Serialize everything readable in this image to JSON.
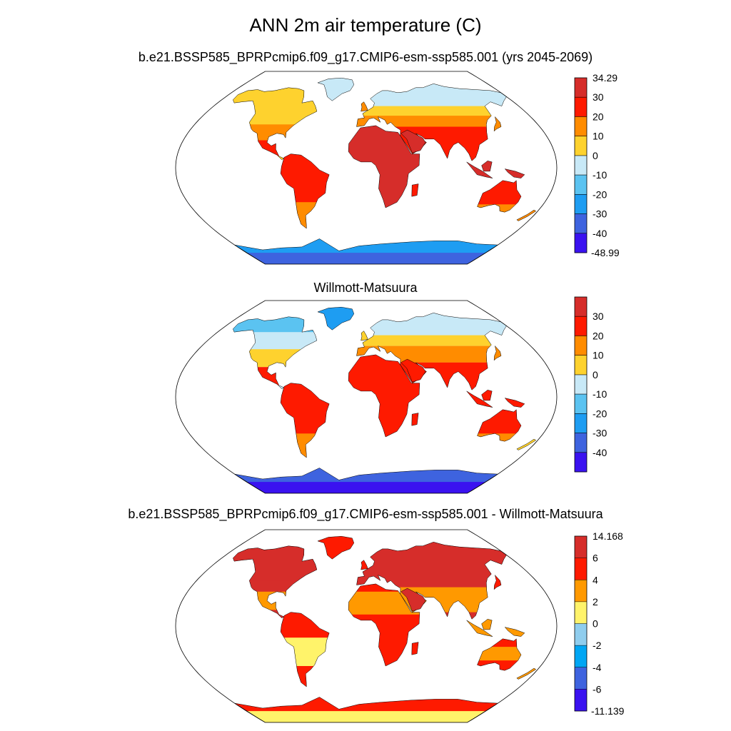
{
  "header": {
    "title": "ANN 2m air temperature (C)"
  },
  "chart_data": [
    {
      "type": "heatmap",
      "projection": "robinson",
      "title": "b.e21.BSSP585_BPRPcmip6.f09_g17.CMIP6-esm-ssp585.001 (yrs 2045-2069)",
      "colorbar": {
        "colors": [
          "#3a12f0",
          "#3e63df",
          "#1e9df2",
          "#5bc3f1",
          "#c8e9f7",
          "#fed22e",
          "#ff8c00",
          "#fe1a00",
          "#d62d2a"
        ],
        "labels": [
          "-48.99",
          "-40",
          "-30",
          "-20",
          "-10",
          "0",
          "10",
          "20",
          "30",
          "34.29"
        ],
        "label_mode": "edges"
      }
    },
    {
      "type": "heatmap",
      "projection": "robinson",
      "title": "Willmott-Matsuura",
      "colorbar": {
        "colors": [
          "#3a12f0",
          "#3e63df",
          "#1e9df2",
          "#5bc3f1",
          "#c8e9f7",
          "#fed22e",
          "#ff8c00",
          "#fe1a00",
          "#d62d2a"
        ],
        "labels": [
          "-40",
          "-30",
          "-20",
          "-10",
          "0",
          "10",
          "20",
          "30"
        ],
        "label_mode": "interior"
      }
    },
    {
      "type": "heatmap",
      "projection": "robinson",
      "title": "b.e21.BSSP585_BPRPcmip6.f09_g17.CMIP6-esm-ssp585.001 - Willmott-Matsuura",
      "colorbar": {
        "colors": [
          "#3a12f0",
          "#3e63df",
          "#00a6f4",
          "#8fcdee",
          "#fff36a",
          "#ff9900",
          "#fe1a00",
          "#d62d2a"
        ],
        "labels": [
          "-11.139",
          "-6",
          "-4",
          "-2",
          "0",
          "2",
          "4",
          "6",
          "14.168"
        ],
        "label_mode": "edges"
      }
    }
  ]
}
